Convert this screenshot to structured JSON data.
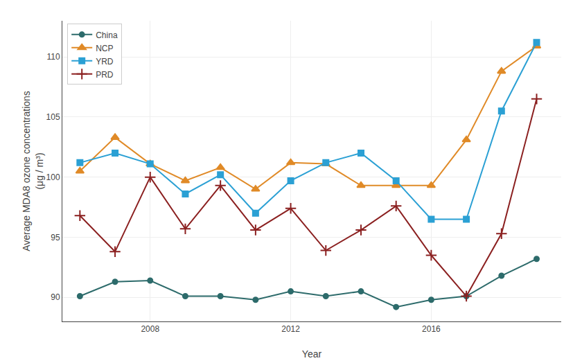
{
  "chart_data": {
    "type": "line",
    "xlabel": "Year",
    "ylabel": "Average MDA8 ozone concentrations\n(μg / m³)",
    "x": [
      2006,
      2007,
      2008,
      2009,
      2010,
      2011,
      2012,
      2013,
      2014,
      2015,
      2016,
      2017,
      2018,
      2019
    ],
    "series": [
      {
        "name": "China",
        "color": "#2d6b6b",
        "marker": "circle",
        "values": [
          90.1,
          91.3,
          91.4,
          90.1,
          90.1,
          89.8,
          90.5,
          90.1,
          90.5,
          89.2,
          89.8,
          90.1,
          91.8,
          93.2
        ]
      },
      {
        "name": "NCP",
        "color": "#e08a27",
        "marker": "triangle-up",
        "values": [
          100.5,
          103.3,
          101.1,
          99.7,
          100.8,
          99.0,
          101.2,
          101.1,
          99.3,
          99.3,
          99.3,
          103.1,
          108.8,
          110.9
        ]
      },
      {
        "name": "YRD",
        "color": "#2ba0d4",
        "marker": "square",
        "values": [
          101.2,
          102.0,
          101.1,
          98.6,
          100.2,
          97.0,
          99.7,
          101.2,
          102.0,
          99.7,
          96.5,
          96.5,
          105.5,
          111.2
        ]
      },
      {
        "name": "PRD",
        "color": "#8b2020",
        "marker": "plus",
        "values": [
          96.8,
          93.8,
          100.0,
          95.7,
          99.3,
          95.6,
          97.4,
          93.9,
          95.6,
          97.6,
          93.5,
          90.1,
          95.3,
          106.5
        ]
      }
    ],
    "xlim": [
      2005.5,
      2019.7
    ],
    "xticks": [
      2008,
      2012,
      2016
    ],
    "ylim": [
      88,
      113
    ],
    "yticks": [
      90,
      95,
      100,
      105,
      110
    ],
    "grid": true,
    "legend": "upper left"
  }
}
